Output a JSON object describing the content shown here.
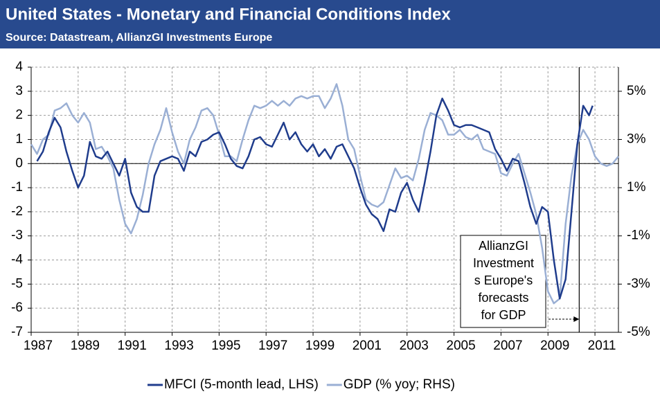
{
  "chart_data": {
    "type": "line",
    "title": "United States - Monetary and Financial Conditions Index",
    "subtitle": "Source: Datastream, AllianzGI Investments Europe",
    "xlim": [
      1987,
      2012
    ],
    "xticks": [
      1987,
      1989,
      1991,
      1993,
      1995,
      1997,
      1999,
      2001,
      2003,
      2005,
      2007,
      2009,
      2011
    ],
    "ylim": [
      -7,
      4
    ],
    "yticks": [
      -7,
      -6,
      -5,
      -4,
      -3,
      -2,
      -1,
      0,
      1,
      2,
      3,
      4
    ],
    "y2lim": [
      -5,
      6
    ],
    "y2ticks": [
      {
        "value": -5,
        "label": "-5%"
      },
      {
        "value": -3,
        "label": "-3%"
      },
      {
        "value": -1,
        "label": "-1%"
      },
      {
        "value": 1,
        "label": "1%"
      },
      {
        "value": 3,
        "label": "3%"
      },
      {
        "value": 5,
        "label": "5%"
      }
    ],
    "grid": true,
    "legend": "bottom",
    "annotation": {
      "lines": [
        "AllianzGI",
        "Investment",
        "s Europe's",
        "forecasts",
        "for GDP"
      ],
      "x": 2010.33
    },
    "series": [
      {
        "name": "MFCI (5-month lead, LHS)",
        "color": "#1f3c8c",
        "axis": "y",
        "x": [
          1987.25,
          1987.5,
          1987.75,
          1988,
          1988.25,
          1988.5,
          1988.75,
          1989,
          1989.25,
          1989.5,
          1989.75,
          1990,
          1990.25,
          1990.5,
          1990.75,
          1991,
          1991.25,
          1991.5,
          1991.75,
          1992,
          1992.25,
          1992.5,
          1992.75,
          1993,
          1993.25,
          1993.5,
          1993.75,
          1994,
          1994.25,
          1994.5,
          1994.75,
          1995,
          1995.25,
          1995.5,
          1995.75,
          1996,
          1996.25,
          1996.5,
          1996.75,
          1997,
          1997.25,
          1997.5,
          1997.75,
          1998,
          1998.25,
          1998.5,
          1998.75,
          1999,
          1999.25,
          1999.5,
          1999.75,
          2000,
          2000.25,
          2000.5,
          2000.75,
          2001,
          2001.25,
          2001.5,
          2001.75,
          2002,
          2002.25,
          2002.5,
          2002.75,
          2003,
          2003.25,
          2003.5,
          2003.75,
          2004,
          2004.25,
          2004.5,
          2004.75,
          2005,
          2005.25,
          2005.5,
          2005.75,
          2006,
          2006.25,
          2006.5,
          2006.75,
          2007,
          2007.25,
          2007.5,
          2007.75,
          2008,
          2008.25,
          2008.5,
          2008.75,
          2009,
          2009.25,
          2009.5,
          2009.75,
          2010,
          2010.25,
          2010.5,
          2010.75,
          2010.9
        ],
        "values": [
          0.1,
          0.5,
          1.3,
          1.9,
          1.5,
          0.5,
          -0.3,
          -1.0,
          -0.5,
          0.9,
          0.3,
          0.2,
          0.5,
          0,
          -0.5,
          0.2,
          -1.2,
          -1.8,
          -2.0,
          -2.0,
          -0.5,
          0.1,
          0.2,
          0.3,
          0.2,
          -0.3,
          0.5,
          0.3,
          0.9,
          1.0,
          1.2,
          1.3,
          0.8,
          0.2,
          -0.1,
          -0.2,
          0.3,
          1.0,
          1.1,
          0.8,
          0.7,
          1.2,
          1.7,
          1.0,
          1.3,
          0.8,
          0.5,
          0.8,
          0.3,
          0.6,
          0.2,
          0.7,
          0.8,
          0.3,
          -0.2,
          -1.0,
          -1.7,
          -2.1,
          -2.3,
          -2.8,
          -1.9,
          -2.0,
          -1.2,
          -0.8,
          -1.5,
          -2.0,
          -0.8,
          0.5,
          2.0,
          2.7,
          2.2,
          1.6,
          1.5,
          1.6,
          1.6,
          1.5,
          1.4,
          1.3,
          0.6,
          0.2,
          -0.3,
          0.2,
          0.1,
          -0.8,
          -1.8,
          -2.5,
          -1.8,
          -2.0,
          -4.0,
          -5.6,
          -4.8,
          -2.0,
          0.8,
          2.4,
          2.0,
          2.4
        ]
      },
      {
        "name": "GDP (% yoy; RHS)",
        "color": "#9aafd4",
        "axis": "y2",
        "x": [
          1987,
          1987.25,
          1987.5,
          1987.75,
          1988,
          1988.25,
          1988.5,
          1988.75,
          1989,
          1989.25,
          1989.5,
          1989.75,
          1990,
          1990.25,
          1990.5,
          1990.75,
          1991,
          1991.25,
          1991.5,
          1991.75,
          1992,
          1992.25,
          1992.5,
          1992.75,
          1993,
          1993.25,
          1993.5,
          1993.75,
          1994,
          1994.25,
          1994.5,
          1994.75,
          1995,
          1995.25,
          1995.5,
          1995.75,
          1996,
          1996.25,
          1996.5,
          1996.75,
          1997,
          1997.25,
          1997.5,
          1997.75,
          1998,
          1998.25,
          1998.5,
          1998.75,
          1999,
          1999.25,
          1999.5,
          1999.75,
          2000,
          2000.25,
          2000.5,
          2000.75,
          2001,
          2001.25,
          2001.5,
          2001.75,
          2002,
          2002.25,
          2002.5,
          2002.75,
          2003,
          2003.25,
          2003.5,
          2003.75,
          2004,
          2004.25,
          2004.5,
          2004.75,
          2005,
          2005.25,
          2005.5,
          2005.75,
          2006,
          2006.25,
          2006.5,
          2006.75,
          2007,
          2007.25,
          2007.5,
          2007.75,
          2008,
          2008.25,
          2008.5,
          2008.75,
          2009,
          2009.25,
          2009.5,
          2009.75,
          2010,
          2010.25,
          2010.5,
          2010.75,
          2011,
          2011.25,
          2011.5,
          2011.75,
          2012
        ],
        "values": [
          2.8,
          2.4,
          3.0,
          3.2,
          4.2,
          4.3,
          4.5,
          4.0,
          3.7,
          4.1,
          3.7,
          2.6,
          2.7,
          2.3,
          1.8,
          0.5,
          -0.5,
          -0.9,
          -0.3,
          0.7,
          2.0,
          2.8,
          3.4,
          4.3,
          3.3,
          2.5,
          2.0,
          3.0,
          3.5,
          4.2,
          4.3,
          4.0,
          3.2,
          2.3,
          2.3,
          2.1,
          3.0,
          3.8,
          4.4,
          4.3,
          4.4,
          4.6,
          4.4,
          4.6,
          4.4,
          4.7,
          4.8,
          4.7,
          4.8,
          4.8,
          4.3,
          4.7,
          5.3,
          4.4,
          3.0,
          2.6,
          1.5,
          0.5,
          0.3,
          0.2,
          0.4,
          1.1,
          1.8,
          1.4,
          1.5,
          1.3,
          2.2,
          3.4,
          4.1,
          4.0,
          3.8,
          3.2,
          3.2,
          3.4,
          3.1,
          3.0,
          3.2,
          2.6,
          2.5,
          2.4,
          1.6,
          1.5,
          2.0,
          2.4,
          1.6,
          0.8,
          -0.1,
          -1.5,
          -3.3,
          -3.8,
          -3.6,
          -0.5,
          1.5,
          2.8,
          3.4,
          3.0,
          2.3,
          2.0,
          1.9,
          2.0,
          2.3
        ]
      }
    ]
  }
}
